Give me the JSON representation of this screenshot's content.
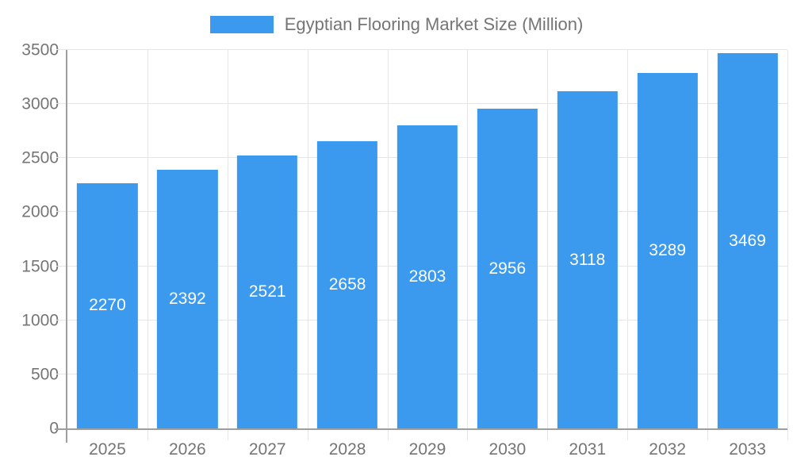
{
  "chart_data": {
    "type": "bar",
    "title": "Egyptian Flooring Market Size (Million)",
    "categories": [
      "2025",
      "2026",
      "2027",
      "2028",
      "2029",
      "2030",
      "2031",
      "2032",
      "2033"
    ],
    "values": [
      2270,
      2392,
      2521,
      2658,
      2803,
      2956,
      3118,
      3289,
      3469
    ],
    "xlabel": "",
    "ylabel": "",
    "ylim": [
      0,
      3500
    ],
    "yticks": [
      0,
      500,
      1000,
      1500,
      2000,
      2500,
      3000,
      3500
    ],
    "legend_position": "top",
    "grid": true,
    "bar_color": "#3B99EE",
    "value_label_color": "#ffffff",
    "axis_text_color": "#757575",
    "axis_line_color": "#9e9e9e",
    "gridline_color": "#e6e6e6"
  }
}
